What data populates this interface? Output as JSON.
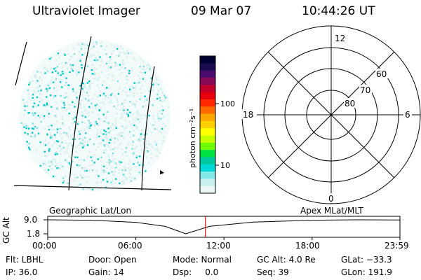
{
  "header": {
    "title": "Ultraviolet Imager",
    "date": "09 Mar 07",
    "time": "10:44:26 UT"
  },
  "colorbar": {
    "label": "photon cm⁻²s⁻¹",
    "ticks": [
      "100",
      "10"
    ],
    "colors": [
      "#000030",
      "#1a0a50",
      "#4b0a70",
      "#8a0a5a",
      "#c0002a",
      "#e8000c",
      "#ff2a00",
      "#ff6a00",
      "#ffa500",
      "#ffd000",
      "#ffff00",
      "#c8ff00",
      "#70ff00",
      "#00e040",
      "#00c8a0",
      "#00d8d8",
      "#80e8e8",
      "#c8f0f0",
      "#ecf8f8"
    ]
  },
  "polar": {
    "mlt_labels": [
      "12",
      "18",
      "6",
      "0"
    ],
    "lat_labels": [
      "60",
      "70",
      "80"
    ]
  },
  "timeline": {
    "left_label": "Geographic Lat/Lon",
    "right_label": "Apex MLat/MLT",
    "axis_title": "GC Alt",
    "y_ticks": [
      "9.0",
      "1.8"
    ],
    "x_ticks": [
      "00:00",
      "06:00",
      "12:00",
      "18:00",
      "23:59"
    ],
    "current_time_hours": 10.74,
    "altitude_curve": {
      "hours": [
        0,
        3,
        6,
        8,
        9.4,
        11,
        14,
        18,
        21,
        23.98
      ],
      "alt_re": [
        9.0,
        8.8,
        7.7,
        5.6,
        1.8,
        5.6,
        7.8,
        8.8,
        9.0,
        8.9
      ]
    }
  },
  "info": {
    "flt": "Flt: LBHL",
    "ip": "IP: 36.0",
    "door": "Door: Open",
    "gain": "Gain: 14",
    "mode": "Mode: Normal",
    "dsp": "Dsp:     0.0",
    "gcalt": "GC Alt: 4.0 Re",
    "seq": "Seq: 39",
    "glat": "GLat: −33.3",
    "glon": "GLon: 191.9"
  }
}
